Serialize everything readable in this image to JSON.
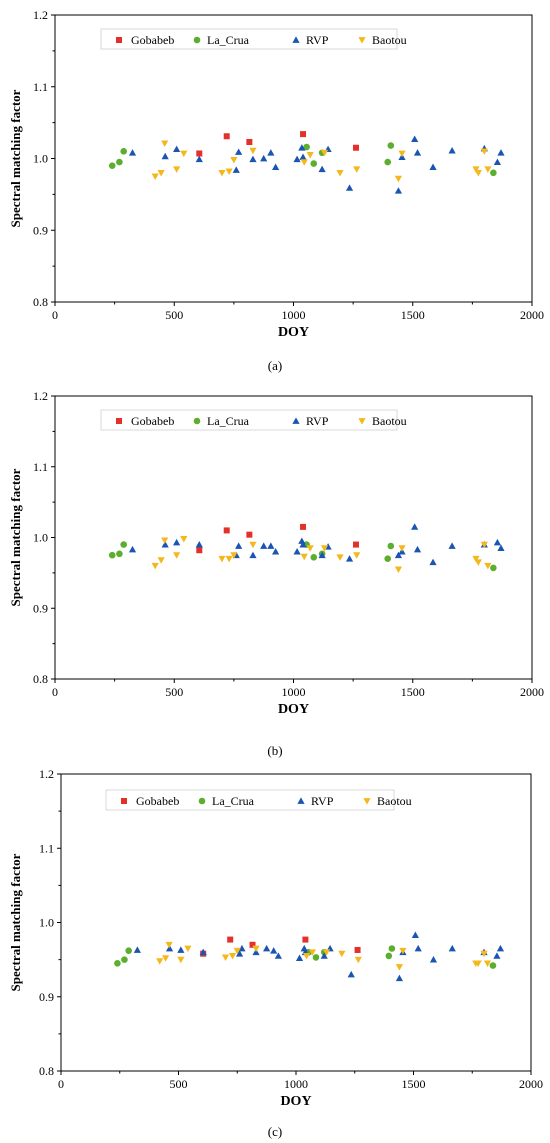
{
  "colors": {
    "Gobabeb": "#e3312a",
    "La_Crua": "#5cae2e",
    "RVP": "#1a55b3",
    "Baotou": "#f5b81c"
  },
  "chart_data": [
    {
      "panel_label": "(a)",
      "type": "scatter",
      "xlabel": "DOY",
      "ylabel": "Spectral matching factor",
      "xlim": [
        0,
        2000
      ],
      "ylim": [
        0.8,
        1.2
      ],
      "xticks": [
        0,
        500,
        1000,
        1500,
        2000
      ],
      "yticks": [
        0.8,
        0.9,
        1.0,
        1.1,
        1.2
      ],
      "legend_position": "top",
      "series": [
        {
          "name": "Gobabeb",
          "marker": "square",
          "x": [
            605,
            720,
            815,
            1040,
            1262
          ],
          "y": [
            1.007,
            1.031,
            1.023,
            1.034,
            1.015
          ]
        },
        {
          "name": "La_Crua",
          "marker": "circle",
          "x": [
            240,
            270,
            288,
            1055,
            1085,
            1120,
            1395,
            1408,
            1838
          ],
          "y": [
            0.99,
            0.995,
            1.01,
            1.016,
            0.993,
            1.008,
            0.995,
            1.018,
            0.98
          ]
        },
        {
          "name": "RVP",
          "marker": "triangle-up",
          "x": [
            325,
            462,
            510,
            605,
            760,
            770,
            830,
            875,
            905,
            925,
            1015,
            1035,
            1040,
            1120,
            1145,
            1235,
            1440,
            1455,
            1508,
            1520,
            1585,
            1665,
            1800,
            1855,
            1870
          ],
          "y": [
            1.008,
            1.003,
            1.013,
            0.999,
            0.984,
            1.009,
            0.999,
            1.0,
            1.008,
            0.988,
            0.999,
            1.015,
            1.002,
            0.985,
            1.013,
            0.959,
            0.955,
            1.002,
            1.027,
            1.008,
            0.988,
            1.011,
            1.014,
            0.995,
            1.008
          ]
        },
        {
          "name": "Baotou",
          "marker": "triangle-down",
          "x": [
            420,
            445,
            460,
            510,
            540,
            700,
            730,
            750,
            830,
            1045,
            1070,
            1130,
            1195,
            1265,
            1440,
            1455,
            1765,
            1775,
            1800,
            1815
          ],
          "y": [
            0.975,
            0.98,
            1.021,
            0.985,
            1.007,
            0.98,
            0.982,
            0.998,
            1.011,
            0.995,
            1.005,
            1.008,
            0.98,
            0.985,
            0.972,
            1.007,
            0.985,
            0.98,
            1.01,
            0.985
          ]
        }
      ]
    },
    {
      "panel_label": "(b)",
      "type": "scatter",
      "xlabel": "DOY",
      "ylabel": "Spectral matching factor",
      "xlim": [
        0,
        2000
      ],
      "ylim": [
        0.8,
        1.2
      ],
      "xticks": [
        0,
        500,
        1000,
        1500,
        2000
      ],
      "yticks": [
        0.8,
        0.9,
        1.0,
        1.1,
        1.2
      ],
      "legend_position": "top",
      "series": [
        {
          "name": "Gobabeb",
          "marker": "square",
          "x": [
            605,
            720,
            815,
            1040,
            1262
          ],
          "y": [
            0.982,
            1.01,
            1.004,
            1.015,
            0.99
          ]
        },
        {
          "name": "La_Crua",
          "marker": "circle",
          "x": [
            240,
            270,
            288,
            1055,
            1085,
            1120,
            1395,
            1408,
            1838
          ],
          "y": [
            0.975,
            0.977,
            0.99,
            0.99,
            0.972,
            0.977,
            0.97,
            0.988,
            0.957
          ]
        },
        {
          "name": "RVP",
          "marker": "triangle-up",
          "x": [
            325,
            462,
            510,
            605,
            760,
            770,
            830,
            875,
            905,
            925,
            1015,
            1035,
            1040,
            1120,
            1145,
            1235,
            1440,
            1455,
            1508,
            1520,
            1585,
            1665,
            1800,
            1855,
            1870
          ],
          "y": [
            0.983,
            0.99,
            0.993,
            0.99,
            0.975,
            0.988,
            0.975,
            0.988,
            0.988,
            0.98,
            0.98,
            0.995,
            0.99,
            0.975,
            0.987,
            0.97,
            0.975,
            0.98,
            1.015,
            0.983,
            0.965,
            0.988,
            0.99,
            0.993,
            0.985
          ]
        },
        {
          "name": "Baotou",
          "marker": "triangle-down",
          "x": [
            420,
            445,
            460,
            510,
            540,
            700,
            730,
            750,
            830,
            1045,
            1070,
            1130,
            1195,
            1265,
            1440,
            1455,
            1765,
            1775,
            1800,
            1815
          ],
          "y": [
            0.96,
            0.968,
            0.996,
            0.975,
            0.998,
            0.97,
            0.97,
            0.975,
            0.99,
            0.973,
            0.985,
            0.985,
            0.972,
            0.975,
            0.955,
            0.985,
            0.97,
            0.965,
            0.99,
            0.96
          ]
        }
      ]
    },
    {
      "panel_label": "(c)",
      "type": "scatter",
      "xlabel": "DOY",
      "ylabel": "Spectral matching factor",
      "xlim": [
        0,
        2000
      ],
      "ylim": [
        0.8,
        1.2
      ],
      "xticks": [
        0,
        500,
        1000,
        1500,
        2000
      ],
      "yticks": [
        0.8,
        0.9,
        1.0,
        1.1,
        1.2
      ],
      "legend_position": "top",
      "series": [
        {
          "name": "Gobabeb",
          "marker": "square",
          "x": [
            605,
            720,
            815,
            1040,
            1262
          ],
          "y": [
            0.958,
            0.977,
            0.97,
            0.977,
            0.963
          ]
        },
        {
          "name": "La_Crua",
          "marker": "circle",
          "x": [
            240,
            270,
            288,
            1055,
            1085,
            1120,
            1395,
            1408,
            1838
          ],
          "y": [
            0.945,
            0.95,
            0.962,
            0.96,
            0.953,
            0.96,
            0.955,
            0.965,
            0.942
          ]
        },
        {
          "name": "RVP",
          "marker": "triangle-up",
          "x": [
            325,
            462,
            510,
            605,
            760,
            770,
            830,
            875,
            905,
            925,
            1015,
            1035,
            1040,
            1120,
            1145,
            1235,
            1440,
            1455,
            1508,
            1520,
            1585,
            1665,
            1800,
            1855,
            1870
          ],
          "y": [
            0.963,
            0.965,
            0.963,
            0.96,
            0.958,
            0.965,
            0.96,
            0.965,
            0.962,
            0.955,
            0.952,
            0.965,
            0.96,
            0.955,
            0.965,
            0.93,
            0.925,
            0.96,
            0.983,
            0.965,
            0.95,
            0.965,
            0.96,
            0.955,
            0.965
          ]
        },
        {
          "name": "Baotou",
          "marker": "triangle-down",
          "x": [
            420,
            445,
            460,
            510,
            540,
            700,
            730,
            750,
            830,
            1045,
            1070,
            1130,
            1195,
            1265,
            1440,
            1455,
            1765,
            1775,
            1800,
            1815
          ],
          "y": [
            0.948,
            0.952,
            0.97,
            0.95,
            0.965,
            0.953,
            0.955,
            0.962,
            0.965,
            0.955,
            0.96,
            0.96,
            0.958,
            0.95,
            0.94,
            0.962,
            0.945,
            0.945,
            0.958,
            0.945
          ]
        }
      ]
    }
  ]
}
